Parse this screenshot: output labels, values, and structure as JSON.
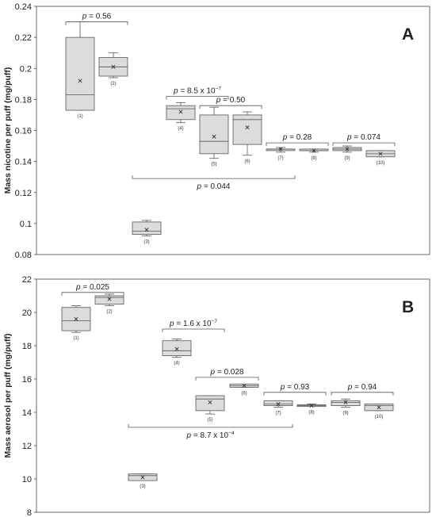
{
  "chart_data": [
    {
      "type": "box",
      "panel_letter": "A",
      "ylabel": "Mass nicotine per puff (mg/puff)",
      "ylim": [
        0.08,
        0.24
      ],
      "yticks": [
        "0.08",
        "0.1",
        "0.12",
        "0.14",
        "0.16",
        "0.18",
        "0.2",
        "0.22",
        "0.24"
      ],
      "yticks_values": [
        0.08,
        0.1,
        0.12,
        0.14,
        0.16,
        0.18,
        0.2,
        0.22,
        0.24
      ],
      "grid": false,
      "boxes": [
        {
          "label": "(1)",
          "min": 0.173,
          "q1": 0.173,
          "median": 0.183,
          "q3": 0.22,
          "max": 0.23,
          "mean": 0.192
        },
        {
          "label": "(2)",
          "min": 0.194,
          "q1": 0.195,
          "median": 0.201,
          "q3": 0.207,
          "max": 0.21,
          "mean": 0.201
        },
        {
          "label": "(3)",
          "min": 0.092,
          "q1": 0.093,
          "median": 0.095,
          "q3": 0.101,
          "max": 0.102,
          "mean": 0.096
        },
        {
          "label": "(4)",
          "min": 0.165,
          "q1": 0.167,
          "median": 0.174,
          "q3": 0.176,
          "max": 0.178,
          "mean": 0.172
        },
        {
          "label": "(5)",
          "min": 0.142,
          "q1": 0.145,
          "median": 0.153,
          "q3": 0.17,
          "max": 0.175,
          "mean": 0.156
        },
        {
          "label": "(6)",
          "min": 0.144,
          "q1": 0.151,
          "median": 0.167,
          "q3": 0.17,
          "max": 0.172,
          "mean": 0.162
        },
        {
          "label": "(7)",
          "min": 0.146,
          "q1": 0.147,
          "median": 0.148,
          "q3": 0.148,
          "max": 0.149,
          "mean": 0.148
        },
        {
          "label": "(8)",
          "min": 0.146,
          "q1": 0.147,
          "median": 0.147,
          "q3": 0.148,
          "max": 0.148,
          "mean": 0.147
        },
        {
          "label": "(9)",
          "min": 0.146,
          "q1": 0.147,
          "median": 0.148,
          "q3": 0.149,
          "max": 0.15,
          "mean": 0.148
        },
        {
          "label": "(10)",
          "min": 0.143,
          "q1": 0.143,
          "median": 0.145,
          "q3": 0.147,
          "max": 0.147,
          "mean": 0.145
        }
      ],
      "comparisons": [
        {
          "from": 1,
          "to": 2,
          "y": 0.23,
          "p": "0.56",
          "exp": ""
        },
        {
          "from": 4,
          "to": 5,
          "y": 0.182,
          "p": "8.5 x 10",
          "exp": "−7"
        },
        {
          "from": 5,
          "to": 6,
          "y": 0.176,
          "p": "0.50",
          "exp": ""
        },
        {
          "from": 7,
          "to": 8,
          "y": 0.152,
          "p": "0.28",
          "exp": ""
        },
        {
          "from": 9,
          "to": 10,
          "y": 0.152,
          "p": "0.074",
          "exp": ""
        },
        {
          "from": 3,
          "to": 7,
          "y": 0.129,
          "p": "0.044",
          "exp": "",
          "below": true
        }
      ]
    },
    {
      "type": "box",
      "panel_letter": "B",
      "ylabel": "Mass aerosol per puff (mg/puff)",
      "ylim": [
        8,
        22
      ],
      "yticks": [
        "8",
        "10",
        "12",
        "14",
        "16",
        "18",
        "20",
        "22"
      ],
      "yticks_values": [
        8,
        10,
        12,
        14,
        16,
        18,
        20,
        22
      ],
      "grid": false,
      "boxes": [
        {
          "label": "(1)",
          "min": 18.8,
          "q1": 18.9,
          "median": 19.5,
          "q3": 20.3,
          "max": 20.4,
          "mean": 19.6
        },
        {
          "label": "(2)",
          "min": 20.4,
          "q1": 20.5,
          "median": 20.9,
          "q3": 21.0,
          "max": 21.1,
          "mean": 20.8
        },
        {
          "label": "(3)",
          "min": 9.9,
          "q1": 9.9,
          "median": 10.2,
          "q3": 10.3,
          "max": 10.3,
          "mean": 10.1
        },
        {
          "label": "(4)",
          "min": 17.3,
          "q1": 17.4,
          "median": 17.7,
          "q3": 18.3,
          "max": 18.4,
          "mean": 17.8
        },
        {
          "label": "(5)",
          "min": 13.9,
          "q1": 14.1,
          "median": 14.8,
          "q3": 15.0,
          "max": 15.0,
          "mean": 14.6
        },
        {
          "label": "(6)",
          "min": 15.5,
          "q1": 15.5,
          "median": 15.6,
          "q3": 15.7,
          "max": 15.7,
          "mean": 15.6
        },
        {
          "label": "(7)",
          "min": 14.3,
          "q1": 14.4,
          "median": 14.5,
          "q3": 14.7,
          "max": 14.7,
          "mean": 14.5
        },
        {
          "label": "(8)",
          "min": 14.35,
          "q1": 14.35,
          "median": 14.4,
          "q3": 14.45,
          "max": 14.5,
          "mean": 14.4
        },
        {
          "label": "(9)",
          "min": 14.3,
          "q1": 14.4,
          "median": 14.6,
          "q3": 14.7,
          "max": 14.8,
          "mean": 14.6
        },
        {
          "label": "(10)",
          "min": 14.1,
          "q1": 14.1,
          "median": 14.4,
          "q3": 14.5,
          "max": 14.5,
          "mean": 14.3
        }
      ],
      "comparisons": [
        {
          "from": 1,
          "to": 2,
          "y": 21.2,
          "p": "0.025",
          "exp": ""
        },
        {
          "from": 4,
          "to": 5,
          "y": 19.0,
          "p": "1.6 x 10",
          "exp": "−7"
        },
        {
          "from": 5,
          "to": 6,
          "y": 16.1,
          "p": "0.028",
          "exp": ""
        },
        {
          "from": 7,
          "to": 8,
          "y": 15.2,
          "p": "0.93",
          "exp": ""
        },
        {
          "from": 9,
          "to": 10,
          "y": 15.2,
          "p": "0.94",
          "exp": ""
        },
        {
          "from": 3,
          "to": 7,
          "y": 13.1,
          "p": "8.7 x 10",
          "exp": "−4",
          "below": true
        }
      ]
    }
  ],
  "colors": {
    "box_fill": "#dcdcdc",
    "stroke": "#555555",
    "frame": "#444444",
    "text": "#222222"
  }
}
